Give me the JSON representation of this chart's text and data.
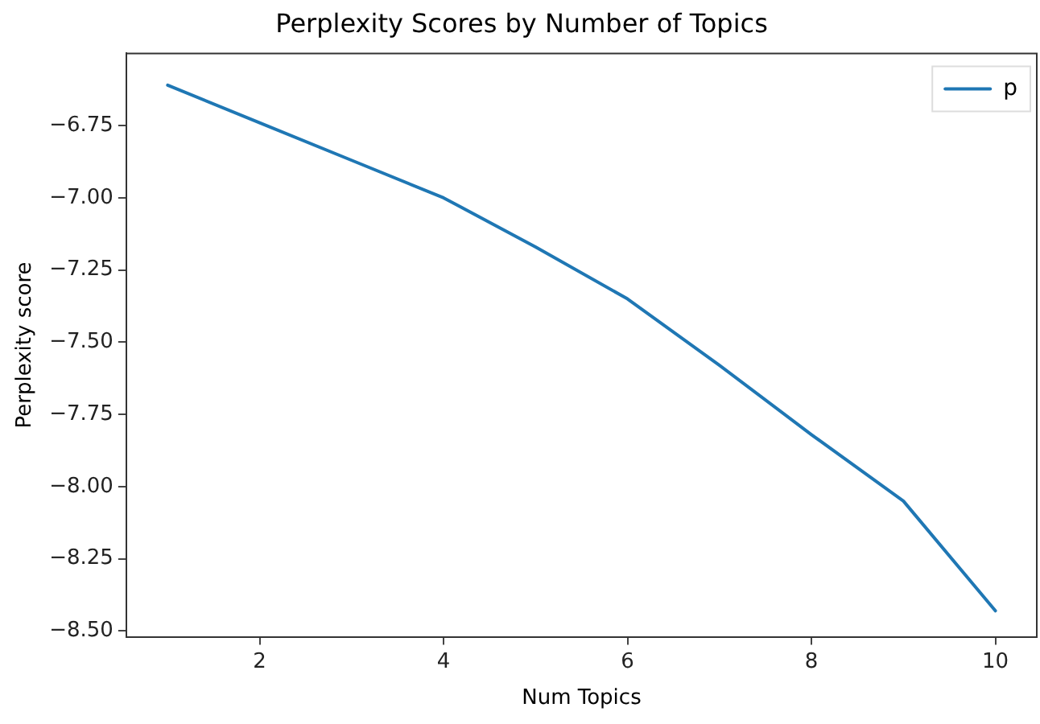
{
  "chart_data": {
    "type": "line",
    "title": "Perplexity Scores by Number of Topics",
    "xlabel": "Num Topics",
    "ylabel": "Perplexity score",
    "x": [
      1,
      2,
      3,
      4,
      5,
      6,
      7,
      8,
      9,
      10
    ],
    "series": [
      {
        "name": "p",
        "color": "#1f77b4",
        "values": [
          -6.61,
          -6.74,
          -6.87,
          -7.0,
          -7.17,
          -7.35,
          -7.58,
          -7.82,
          -8.05,
          -8.43
        ]
      }
    ],
    "xlim": [
      0.55,
      10.45
    ],
    "xticks": [
      2,
      4,
      6,
      8,
      10
    ],
    "ylim": [
      -8.52,
      -6.5
    ],
    "yticks": [
      {
        "value": -8.5,
        "label": "−8.50"
      },
      {
        "value": -8.25,
        "label": "−8.25"
      },
      {
        "value": -8.0,
        "label": "−8.00"
      },
      {
        "value": -7.75,
        "label": "−7.75"
      },
      {
        "value": -7.5,
        "label": "−7.50"
      },
      {
        "value": -7.25,
        "label": "−7.25"
      },
      {
        "value": -7.0,
        "label": "−7.00"
      },
      {
        "value": -6.75,
        "label": "−6.75"
      }
    ],
    "grid": false,
    "legend": "top right",
    "marker": "none",
    "line_style": "solid"
  }
}
